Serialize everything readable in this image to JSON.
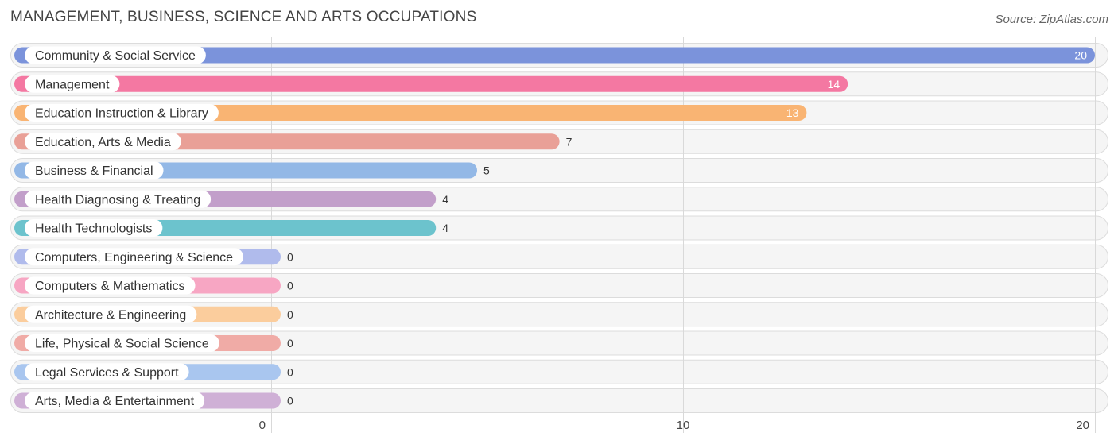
{
  "header": {
    "title": "MANAGEMENT, BUSINESS, SCIENCE AND ARTS OCCUPATIONS",
    "source": "Source: ZipAtlas.com"
  },
  "chart_data": {
    "type": "bar",
    "orientation": "horizontal",
    "title": "MANAGEMENT, BUSINESS, SCIENCE AND ARTS OCCUPATIONS",
    "xlim": [
      0,
      20
    ],
    "xticks": [
      0,
      10,
      20
    ],
    "grid": true,
    "categories": [
      "Community & Social Service",
      "Management",
      "Education Instruction & Library",
      "Education, Arts & Media",
      "Business & Financial",
      "Health Diagnosing & Treating",
      "Health Technologists",
      "Computers, Engineering & Science",
      "Computers & Mathematics",
      "Architecture & Engineering",
      "Life, Physical & Social Science",
      "Legal Services & Support",
      "Arts, Media & Entertainment"
    ],
    "values": [
      20,
      14,
      13,
      7,
      5,
      4,
      4,
      0,
      0,
      0,
      0,
      0,
      0
    ],
    "colors": [
      "#7b93db",
      "#f478a2",
      "#f9b473",
      "#e9a097",
      "#93b8e6",
      "#c29fca",
      "#6cc3cd",
      "#b0bbec",
      "#f7a6c3",
      "#fbcd9d",
      "#f0aba6",
      "#a9c6ef",
      "#cfb0d6"
    ]
  }
}
